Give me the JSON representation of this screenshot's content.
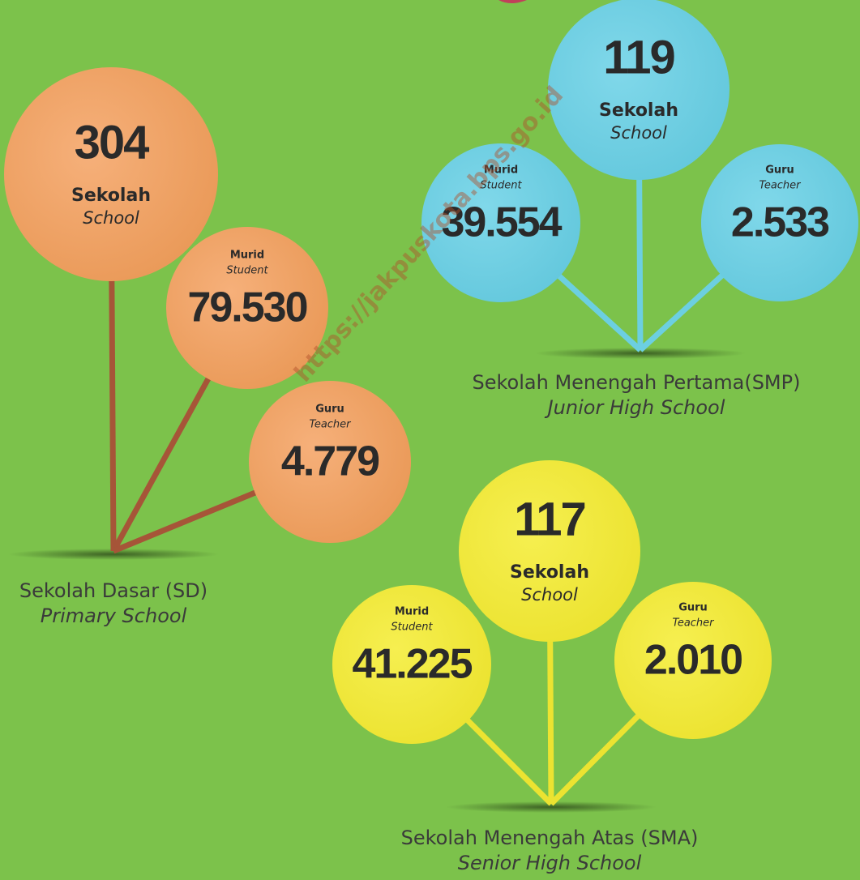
{
  "watermark": "https://jakpuskota.bps.go.id",
  "groups": [
    {
      "title": "Sekolah Dasar (SD)",
      "subtitle": "Primary School",
      "school": {
        "value": "304",
        "label": "Sekolah",
        "sublabel": "School"
      },
      "student": {
        "value": "79.530",
        "label": "Murid",
        "sublabel": "Student"
      },
      "teacher": {
        "value": "4.779",
        "label": "Guru",
        "sublabel": "Teacher"
      }
    },
    {
      "title": "Sekolah Menengah Pertama(SMP)",
      "subtitle": "Junior High School",
      "school": {
        "value": "119",
        "label": "Sekolah",
        "sublabel": "School"
      },
      "student": {
        "value": "39.554",
        "label": "Murid",
        "sublabel": "Student"
      },
      "teacher": {
        "value": "2.533",
        "label": "Guru",
        "sublabel": "Teacher"
      }
    },
    {
      "title": "Sekolah Menengah Atas (SMA)",
      "subtitle": "Senior High School",
      "school": {
        "value": "117",
        "label": "Sekolah",
        "sublabel": "School"
      },
      "student": {
        "value": "41.225",
        "label": "Murid",
        "sublabel": "Student"
      },
      "teacher": {
        "value": "2.010",
        "label": "Guru",
        "sublabel": "Teacher"
      }
    }
  ]
}
